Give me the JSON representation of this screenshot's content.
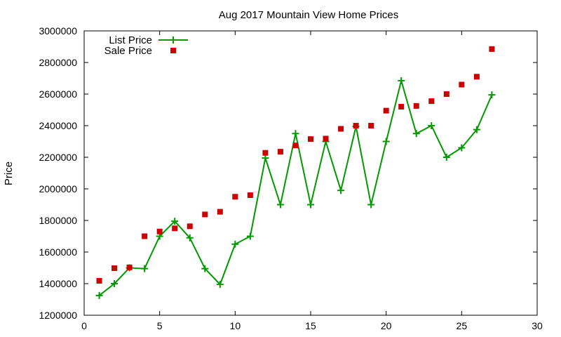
{
  "chart_data": {
    "type": "line",
    "title": "Aug 2017 Mountain View Home Prices",
    "xlabel": "",
    "ylabel": "Price",
    "xlim": [
      0,
      30
    ],
    "ylim": [
      1200000,
      3000000
    ],
    "x_ticks": [
      "0",
      "5",
      "10",
      "15",
      "20",
      "25",
      "30"
    ],
    "y_ticks": [
      "1200000",
      "1400000",
      "1600000",
      "1800000",
      "2000000",
      "2200000",
      "2400000",
      "2600000",
      "2800000",
      "3000000"
    ],
    "grid": false,
    "legend_position": "top-left",
    "x": [
      1,
      2,
      3,
      4,
      5,
      6,
      7,
      8,
      9,
      10,
      11,
      12,
      13,
      14,
      15,
      16,
      17,
      18,
      19,
      20,
      21,
      22,
      23,
      24,
      25,
      26,
      27
    ],
    "series": [
      {
        "name": "List Price",
        "style": "line-with-plus-markers",
        "color": "#009900",
        "values": [
          1325000,
          1400000,
          1500000,
          1495000,
          1700000,
          1795000,
          1690000,
          1495000,
          1395000,
          1650000,
          1700000,
          2195000,
          1900000,
          2350000,
          1900000,
          2300000,
          1990000,
          2395000,
          1900000,
          2300000,
          2685000,
          2350000,
          2400000,
          2200000,
          2260000,
          2375000,
          2595000
        ]
      },
      {
        "name": "Sale Price",
        "style": "square-markers",
        "color": "#cc0000",
        "values": [
          1418000,
          1498000,
          1503000,
          1700000,
          1730000,
          1750000,
          1763000,
          1838000,
          1855000,
          1950000,
          1960000,
          2228000,
          2235000,
          2275000,
          2315000,
          2318000,
          2380000,
          2400000,
          2400000,
          2495000,
          2520000,
          2525000,
          2555000,
          2600000,
          2660000,
          2710000,
          2885000
        ]
      }
    ]
  }
}
